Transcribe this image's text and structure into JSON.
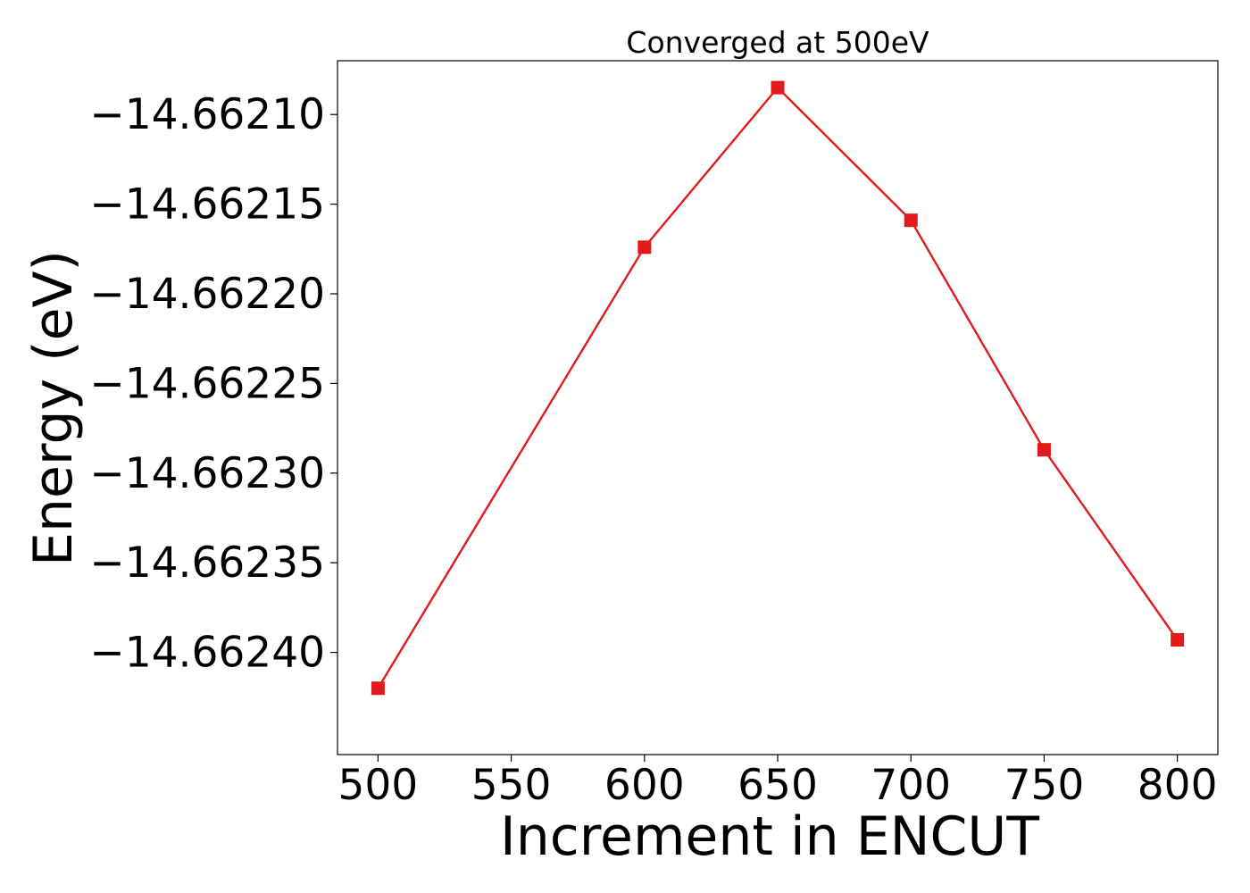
{
  "chart_data": {
    "type": "line",
    "title": "Converged at 500eV",
    "xlabel": "Increment in ENCUT",
    "ylabel": "Energy (eV)",
    "x": [
      500,
      600,
      650,
      700,
      750,
      800
    ],
    "series": [
      {
        "values": [
          -14.66242,
          -14.662174,
          -14.662085,
          -14.662159,
          -14.662287,
          -14.662393
        ],
        "color": "#e31a1c",
        "marker": "square"
      }
    ],
    "xticks": [
      500,
      550,
      600,
      650,
      700,
      750,
      800
    ],
    "xtick_labels": [
      "500",
      "550",
      "600",
      "650",
      "700",
      "750",
      "800"
    ],
    "yticks": [
      -14.6621,
      -14.66215,
      -14.6622,
      -14.66225,
      -14.6623,
      -14.66235,
      -14.6624
    ],
    "ytick_labels": [
      "−14.66210",
      "−14.66215",
      "−14.66220",
      "−14.66225",
      "−14.66230",
      "−14.66235",
      "−14.66240"
    ],
    "xlim": [
      484.8,
      815.2
    ],
    "ylim": [
      -14.662457,
      -14.66207
    ],
    "grid": false,
    "legend": "none"
  }
}
